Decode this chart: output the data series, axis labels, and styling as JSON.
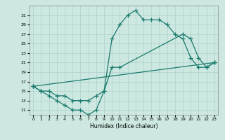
{
  "xlabel": "Humidex (Indice chaleur)",
  "background_color": "#cce8e0",
  "grid_color": "#b0d0cc",
  "line_color": "#1a7a6e",
  "xlim": [
    -0.5,
    23.5
  ],
  "ylim": [
    10,
    33
  ],
  "xticks": [
    0,
    1,
    2,
    3,
    4,
    5,
    6,
    7,
    8,
    9,
    10,
    11,
    12,
    13,
    14,
    15,
    16,
    17,
    18,
    19,
    20,
    21,
    22,
    23
  ],
  "yticks": [
    11,
    13,
    15,
    17,
    19,
    21,
    23,
    25,
    27,
    29,
    31
  ],
  "series1_x": [
    0,
    1,
    2,
    3,
    4,
    5,
    6,
    7,
    8,
    9,
    10,
    11,
    12,
    13,
    14,
    15,
    16,
    17,
    18,
    19,
    20,
    21,
    22,
    23
  ],
  "series1_y": [
    16,
    15,
    14,
    13,
    12,
    11,
    11,
    10,
    11,
    15,
    26,
    29,
    31,
    32,
    30,
    30,
    30,
    29,
    27,
    26,
    22,
    20,
    20,
    21
  ],
  "series2_x": [
    0,
    1,
    2,
    3,
    4,
    5,
    6,
    7,
    8,
    9,
    10,
    11,
    19,
    20,
    21,
    22,
    23
  ],
  "series2_y": [
    16,
    15,
    15,
    14,
    14,
    13,
    13,
    13,
    14,
    15,
    20,
    20,
    27,
    26,
    22,
    20,
    21
  ],
  "series3_x": [
    0,
    23
  ],
  "series3_y": [
    16,
    21
  ]
}
